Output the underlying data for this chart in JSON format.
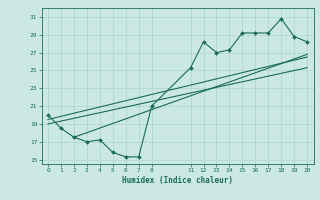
{
  "xlabel": "Humidex (Indice chaleur)",
  "bg_color": "#cce8e4",
  "line_color": "#1a6b5a",
  "grid_color": "#aad4ce",
  "xlim": [
    -0.5,
    20.5
  ],
  "ylim": [
    14.5,
    32
  ],
  "xticks": [
    0,
    1,
    2,
    3,
    4,
    5,
    6,
    7,
    8,
    11,
    12,
    13,
    14,
    15,
    16,
    17,
    18,
    19,
    20
  ],
  "yticks": [
    15,
    17,
    19,
    21,
    23,
    25,
    27,
    29,
    31
  ],
  "line1_x": [
    0,
    1,
    2,
    3,
    4,
    5,
    6,
    7,
    8,
    11,
    12,
    13,
    14,
    15,
    16,
    17,
    18,
    19,
    20
  ],
  "line1_y": [
    20.0,
    18.5,
    17.5,
    17.0,
    17.2,
    15.8,
    15.3,
    15.3,
    21.0,
    25.3,
    28.2,
    27.0,
    27.3,
    29.2,
    29.2,
    29.2,
    30.8,
    28.8,
    28.2
  ],
  "line2_x": [
    0,
    20
  ],
  "line2_y": [
    19.5,
    26.5
  ],
  "line3_x": [
    0,
    20
  ],
  "line3_y": [
    19.0,
    25.3
  ],
  "line4_x": [
    2,
    20
  ],
  "line4_y": [
    17.5,
    26.8
  ]
}
